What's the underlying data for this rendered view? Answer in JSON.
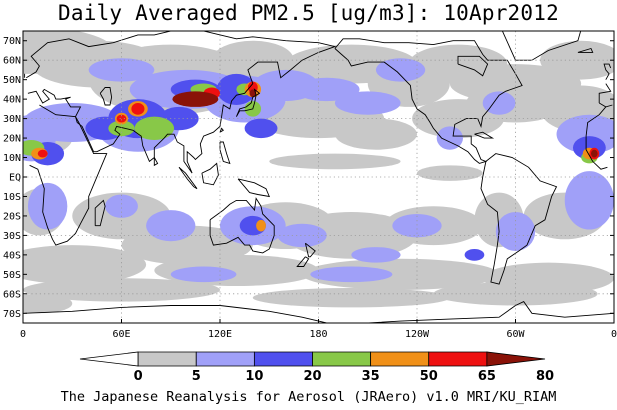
{
  "title": "Daily Averaged PM2.5 [ug/m3]: 10Apr2012",
  "footer": "The Japanese Reanalysis for Aerosol (JRAero) v1.0 MRI/KU_RIAM",
  "map": {
    "lat_range": [
      -75,
      75
    ],
    "lon_range": [
      0,
      360
    ],
    "lat_ticks": [
      {
        "lat": 70,
        "label": "70N"
      },
      {
        "lat": 60,
        "label": "60N"
      },
      {
        "lat": 50,
        "label": "50N"
      },
      {
        "lat": 40,
        "label": "40N"
      },
      {
        "lat": 30,
        "label": "30N"
      },
      {
        "lat": 20,
        "label": "20N"
      },
      {
        "lat": 10,
        "label": "10N"
      },
      {
        "lat": 0,
        "label": "EQ"
      },
      {
        "lat": -10,
        "label": "10S"
      },
      {
        "lat": -20,
        "label": "20S"
      },
      {
        "lat": -30,
        "label": "30S"
      },
      {
        "lat": -40,
        "label": "40S"
      },
      {
        "lat": -50,
        "label": "50S"
      },
      {
        "lat": -60,
        "label": "60S"
      },
      {
        "lat": -70,
        "label": "70S"
      }
    ],
    "lon_ticks": [
      {
        "lon": 0,
        "label": "0"
      },
      {
        "lon": 60,
        "label": "60E"
      },
      {
        "lon": 120,
        "label": "120E"
      },
      {
        "lon": 180,
        "label": "180"
      },
      {
        "lon": 240,
        "label": "120W"
      },
      {
        "lon": 300,
        "label": "60W"
      },
      {
        "lon": 360,
        "label": "0"
      }
    ],
    "grid": true,
    "gridlines_lat": [
      60,
      30,
      0,
      -30,
      -60
    ],
    "gridlines_lon": [
      60,
      120,
      180,
      240,
      300
    ],
    "colors": {
      "c5": "#c8c8c8",
      "c10": "#a0a0f8",
      "c20": "#5050ee",
      "c35": "#88c848",
      "c50": "#f09018",
      "c65": "#ee1010",
      "c80": "#8a1208",
      "coast": "#000000"
    },
    "levels": [
      {
        "level": "c5",
        "blobs": [
          [
            5,
            65,
            50,
            12
          ],
          [
            45,
            58,
            40,
            12
          ],
          [
            90,
            50,
            50,
            18
          ],
          [
            140,
            60,
            25,
            10
          ],
          [
            170,
            50,
            30,
            12
          ],
          [
            200,
            58,
            40,
            10
          ],
          [
            235,
            48,
            25,
            12
          ],
          [
            265,
            58,
            30,
            10
          ],
          [
            300,
            48,
            40,
            10
          ],
          [
            340,
            60,
            25,
            10
          ],
          [
            180,
            30,
            40,
            10
          ],
          [
            215,
            22,
            25,
            8
          ],
          [
            265,
            30,
            28,
            10
          ],
          [
            300,
            38,
            30,
            10
          ],
          [
            340,
            35,
            25,
            12
          ],
          [
            5,
            20,
            25,
            10
          ],
          [
            190,
            8,
            40,
            4
          ],
          [
            260,
            2,
            20,
            4
          ],
          [
            10,
            -18,
            15,
            12
          ],
          [
            60,
            -20,
            30,
            12
          ],
          [
            100,
            -35,
            40,
            10
          ],
          [
            160,
            -25,
            30,
            12
          ],
          [
            200,
            -30,
            40,
            12
          ],
          [
            250,
            -25,
            30,
            10
          ],
          [
            290,
            -22,
            15,
            14
          ],
          [
            330,
            -20,
            25,
            12
          ],
          [
            30,
            -45,
            45,
            10
          ],
          [
            130,
            -48,
            50,
            8
          ],
          [
            230,
            -50,
            60,
            8
          ],
          [
            320,
            -52,
            40,
            8
          ],
          [
            60,
            -58,
            60,
            6
          ],
          [
            200,
            -62,
            60,
            5
          ],
          [
            300,
            -60,
            50,
            6
          ],
          [
            10,
            -65,
            20,
            5
          ]
        ]
      },
      {
        "level": "c10",
        "blobs": [
          [
            5,
            20,
            15,
            12
          ],
          [
            30,
            28,
            30,
            10
          ],
          [
            70,
            25,
            25,
            12
          ],
          [
            100,
            45,
            35,
            10
          ],
          [
            135,
            40,
            25,
            12
          ],
          [
            160,
            47,
            20,
            8
          ],
          [
            185,
            45,
            20,
            6
          ],
          [
            210,
            38,
            20,
            6
          ],
          [
            60,
            55,
            20,
            6
          ],
          [
            15,
            -15,
            12,
            12
          ],
          [
            60,
            -15,
            10,
            6
          ],
          [
            140,
            -25,
            20,
            10
          ],
          [
            90,
            -25,
            15,
            8
          ],
          [
            170,
            -30,
            15,
            6
          ],
          [
            215,
            -40,
            15,
            4
          ],
          [
            240,
            -25,
            15,
            6
          ],
          [
            300,
            -28,
            12,
            10
          ],
          [
            345,
            -12,
            15,
            15
          ],
          [
            345,
            22,
            20,
            10
          ],
          [
            290,
            38,
            10,
            6
          ],
          [
            260,
            20,
            8,
            6
          ],
          [
            230,
            55,
            15,
            6
          ],
          [
            110,
            -50,
            20,
            4
          ],
          [
            200,
            -50,
            25,
            4
          ]
        ]
      },
      {
        "level": "c20",
        "blobs": [
          [
            70,
            30,
            18,
            10
          ],
          [
            50,
            25,
            12,
            6
          ],
          [
            15,
            12,
            10,
            6
          ],
          [
            95,
            30,
            12,
            6
          ],
          [
            130,
            45,
            12,
            8
          ],
          [
            145,
            25,
            10,
            5
          ],
          [
            345,
            15,
            10,
            6
          ],
          [
            140,
            -25,
            8,
            5
          ],
          [
            275,
            -40,
            6,
            3
          ],
          [
            105,
            45,
            15,
            5
          ]
        ]
      },
      {
        "level": "c35",
        "blobs": [
          [
            80,
            25,
            12,
            6
          ],
          [
            60,
            25,
            8,
            4
          ],
          [
            5,
            15,
            8,
            4
          ],
          [
            140,
            35,
            5,
            4
          ],
          [
            135,
            45,
            5,
            3
          ],
          [
            110,
            45,
            8,
            3
          ],
          [
            345,
            10,
            5,
            3
          ]
        ]
      },
      {
        "level": "c50",
        "blobs": [
          [
            70,
            35,
            6,
            4
          ],
          [
            10,
            12,
            5,
            3
          ],
          [
            140,
            45,
            5,
            4
          ],
          [
            60,
            30,
            4,
            3
          ],
          [
            345,
            12,
            4,
            3
          ],
          [
            145,
            -25,
            3,
            3
          ]
        ]
      },
      {
        "level": "c65",
        "blobs": [
          [
            70,
            35,
            4,
            3
          ],
          [
            12,
            12,
            3,
            2
          ],
          [
            140,
            46,
            3,
            3
          ],
          [
            115,
            43,
            5,
            3
          ],
          [
            348,
            12,
            3,
            3
          ],
          [
            60,
            30,
            3,
            2
          ]
        ]
      },
      {
        "level": "c80",
        "blobs": [
          [
            105,
            40,
            14,
            4
          ],
          [
            140,
            43,
            2,
            2
          ],
          [
            348,
            12,
            2,
            2
          ]
        ]
      }
    ]
  },
  "colorbar": {
    "labels": [
      "0",
      "5",
      "10",
      "20",
      "35",
      "50",
      "65",
      "80"
    ],
    "colors": [
      "#ffffff",
      "#c8c8c8",
      "#a0a0f8",
      "#5050ee",
      "#88c848",
      "#f09018",
      "#ee1010",
      "#8a1208"
    ]
  }
}
